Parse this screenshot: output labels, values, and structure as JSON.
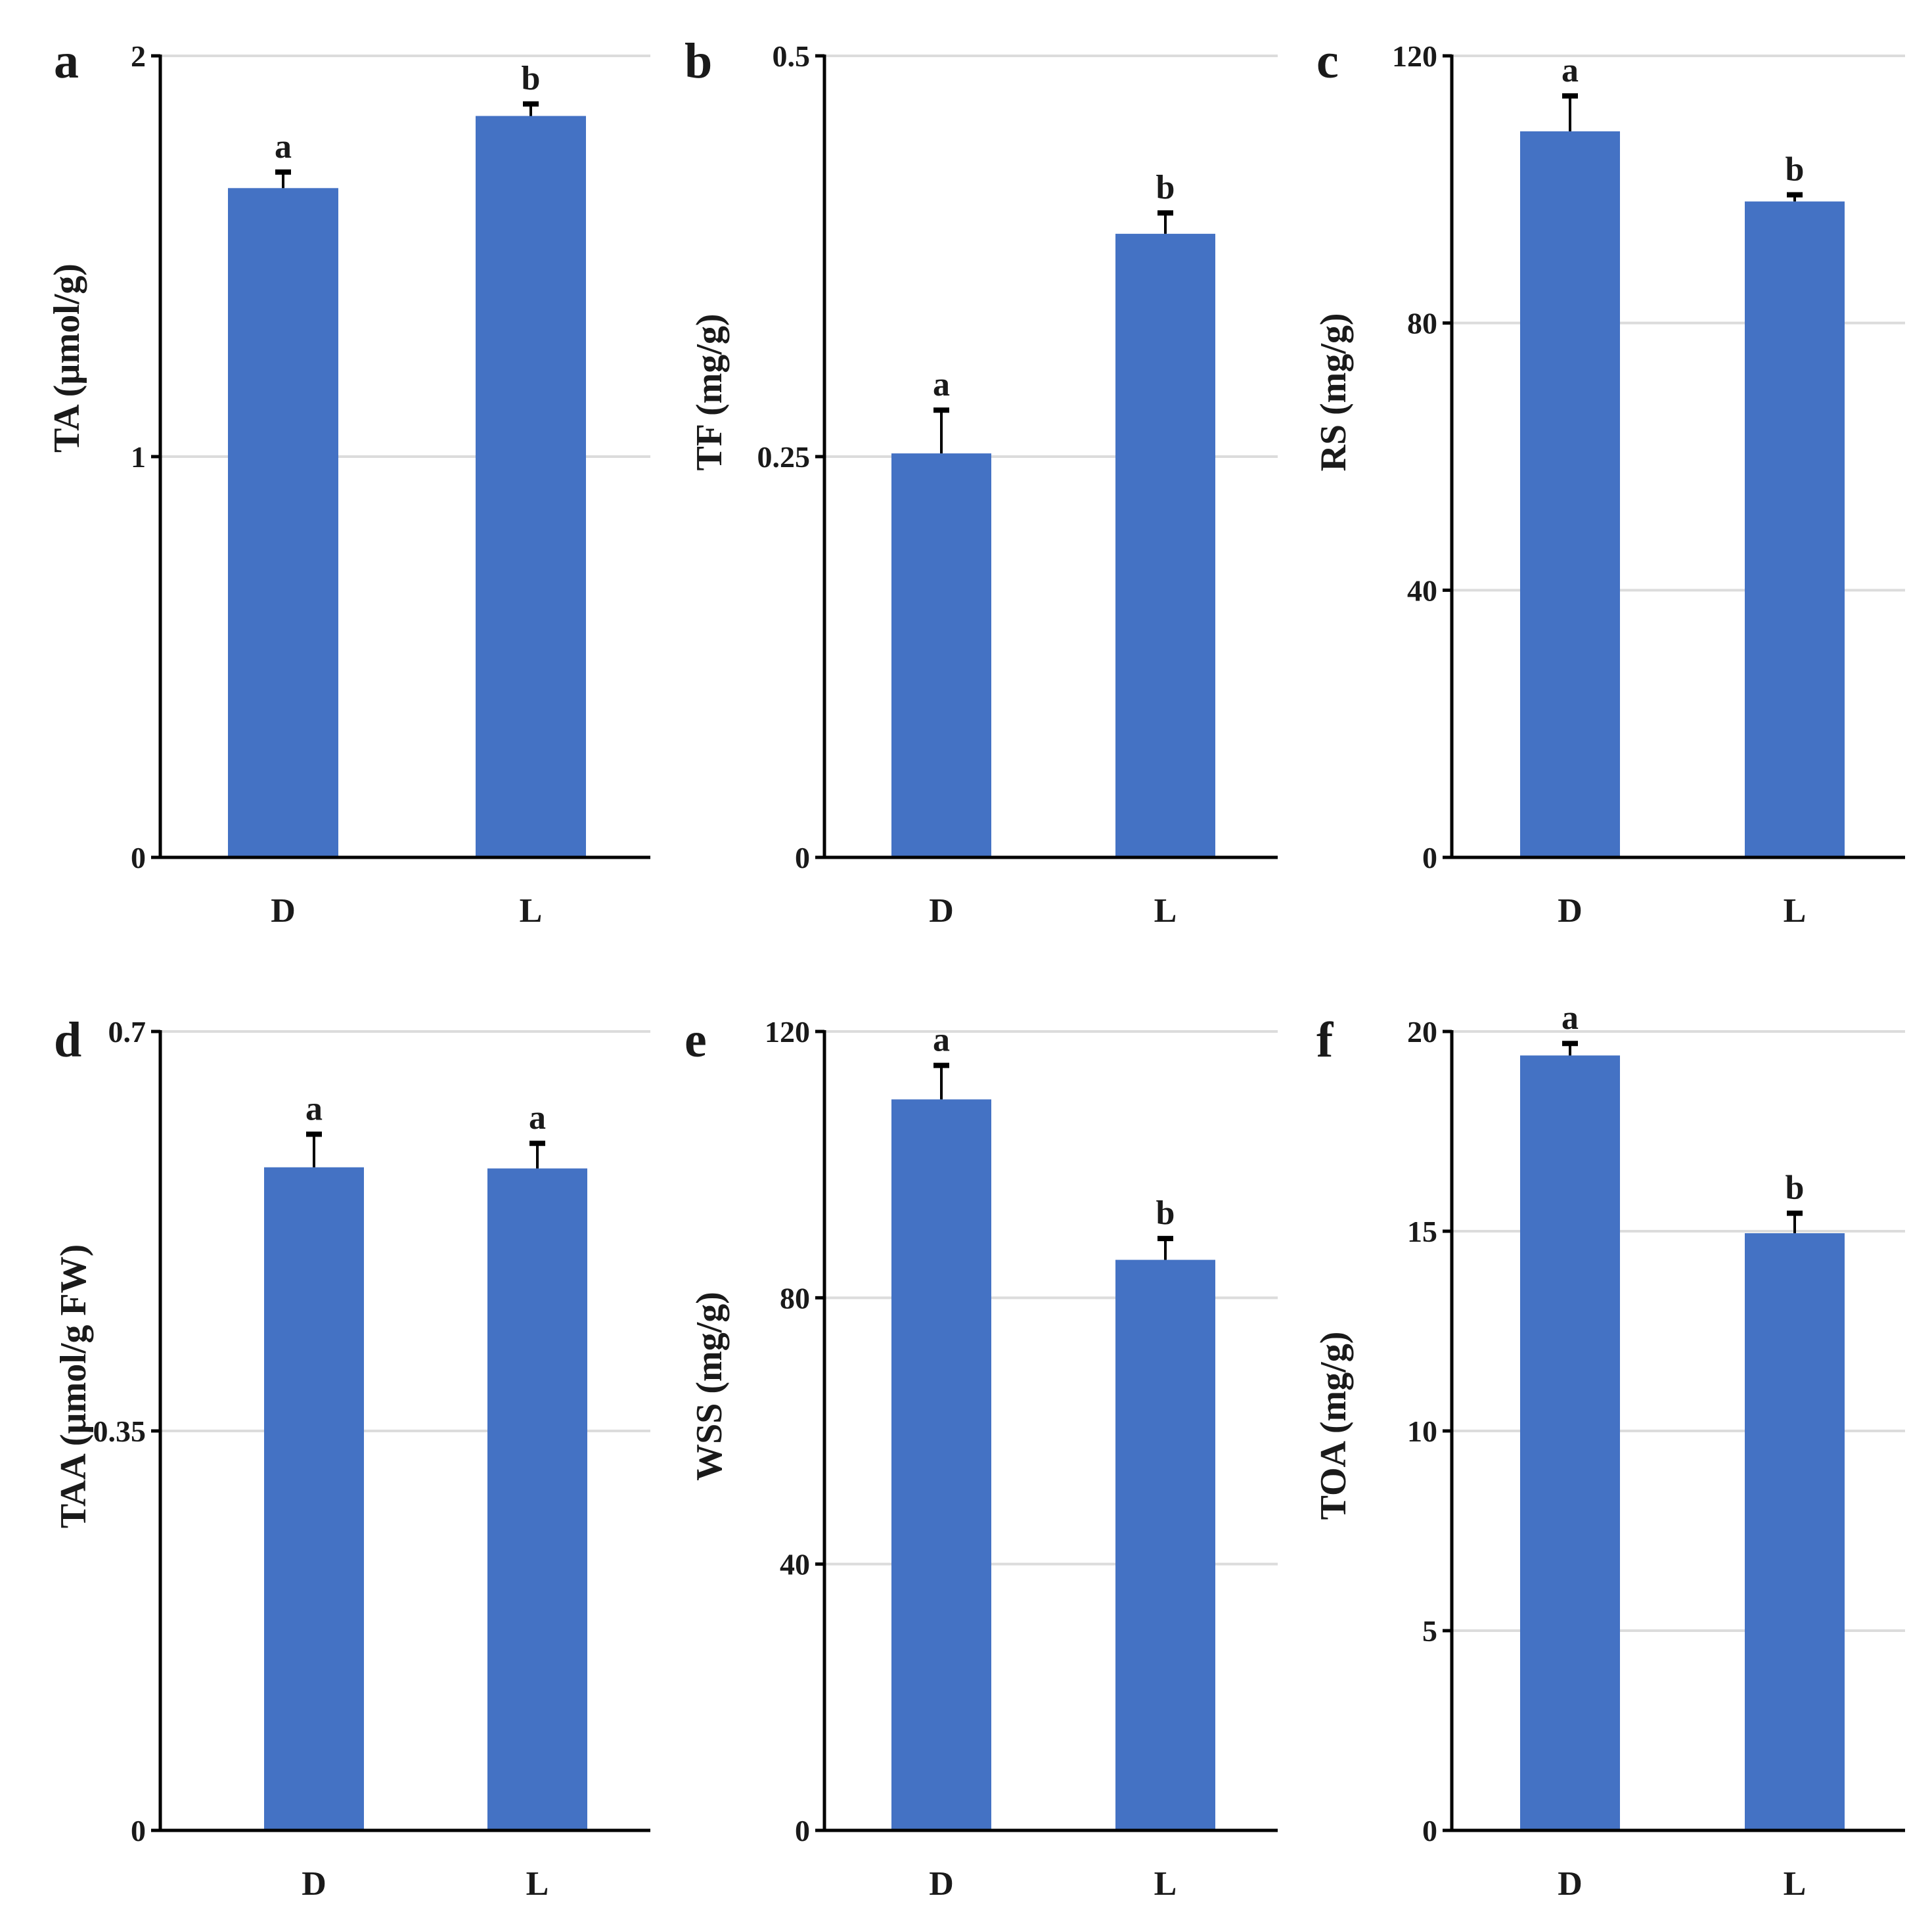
{
  "colors": {
    "bar": "#4472c4",
    "axis": "#000000",
    "grid": "#dcdcdc",
    "text": "#1a1a1a"
  },
  "chart_data": [
    {
      "type": "bar",
      "panel": "a",
      "ylabel": "TA (µmol/g)",
      "categories": [
        "D",
        "L"
      ],
      "values": [
        1.67,
        1.85
      ],
      "errors": [
        0.04,
        0.03
      ],
      "significance": [
        "a",
        "b"
      ],
      "ylim": [
        0,
        2
      ],
      "yticks": [
        0,
        1,
        2
      ],
      "ytick_labels": [
        "0",
        "1",
        "2"
      ],
      "grid": true
    },
    {
      "type": "bar",
      "panel": "b",
      "ylabel": "TF (mg/g)",
      "categories": [
        "D",
        "L"
      ],
      "values": [
        0.252,
        0.389
      ],
      "errors": [
        0.027,
        0.013
      ],
      "significance": [
        "a",
        "b"
      ],
      "ylim": [
        0,
        0.5
      ],
      "yticks": [
        0,
        0.25,
        0.5
      ],
      "ytick_labels": [
        "0",
        "0.25",
        "0.5"
      ],
      "grid": true
    },
    {
      "type": "bar",
      "panel": "c",
      "ylabel": "RS (mg/g)",
      "categories": [
        "D",
        "L"
      ],
      "values": [
        108.7,
        98.2
      ],
      "errors": [
        5.3,
        1.0
      ],
      "significance": [
        "a",
        "b"
      ],
      "ylim": [
        0,
        120
      ],
      "yticks": [
        0,
        40,
        80,
        120
      ],
      "ytick_labels": [
        "0",
        "40",
        "80",
        "120"
      ],
      "grid": true
    },
    {
      "type": "bar",
      "panel": "d",
      "ylabel": "TAA (µmol/g FW)",
      "categories": [
        "D",
        "L"
      ],
      "values": [
        0.581,
        0.58
      ],
      "errors": [
        0.029,
        0.022
      ],
      "significance": [
        "a",
        "a"
      ],
      "ylim": [
        0,
        0.7
      ],
      "yticks": [
        0,
        0.35,
        0.7
      ],
      "ytick_labels": [
        "0",
        "0.35",
        "0.7"
      ],
      "grid": true
    },
    {
      "type": "bar",
      "panel": "e",
      "ylabel": "WSS (mg/g)",
      "categories": [
        "D",
        "L"
      ],
      "values": [
        109.8,
        85.7
      ],
      "errors": [
        5.1,
        3.2
      ],
      "significance": [
        "a",
        "b"
      ],
      "ylim": [
        0,
        120
      ],
      "yticks": [
        0,
        40,
        80,
        120
      ],
      "ytick_labels": [
        "0",
        "40",
        "80",
        "120"
      ],
      "grid": true
    },
    {
      "type": "bar",
      "panel": "f",
      "ylabel": "TOA (mg/g)",
      "categories": [
        "D",
        "L"
      ],
      "values": [
        19.4,
        14.95
      ],
      "errors": [
        0.3,
        0.5
      ],
      "significance": [
        "a",
        "b"
      ],
      "ylim": [
        0,
        20
      ],
      "yticks": [
        0,
        5,
        10,
        15,
        20
      ],
      "ytick_labels": [
        "0",
        "5",
        "10",
        "15",
        "20"
      ],
      "grid": true
    }
  ]
}
